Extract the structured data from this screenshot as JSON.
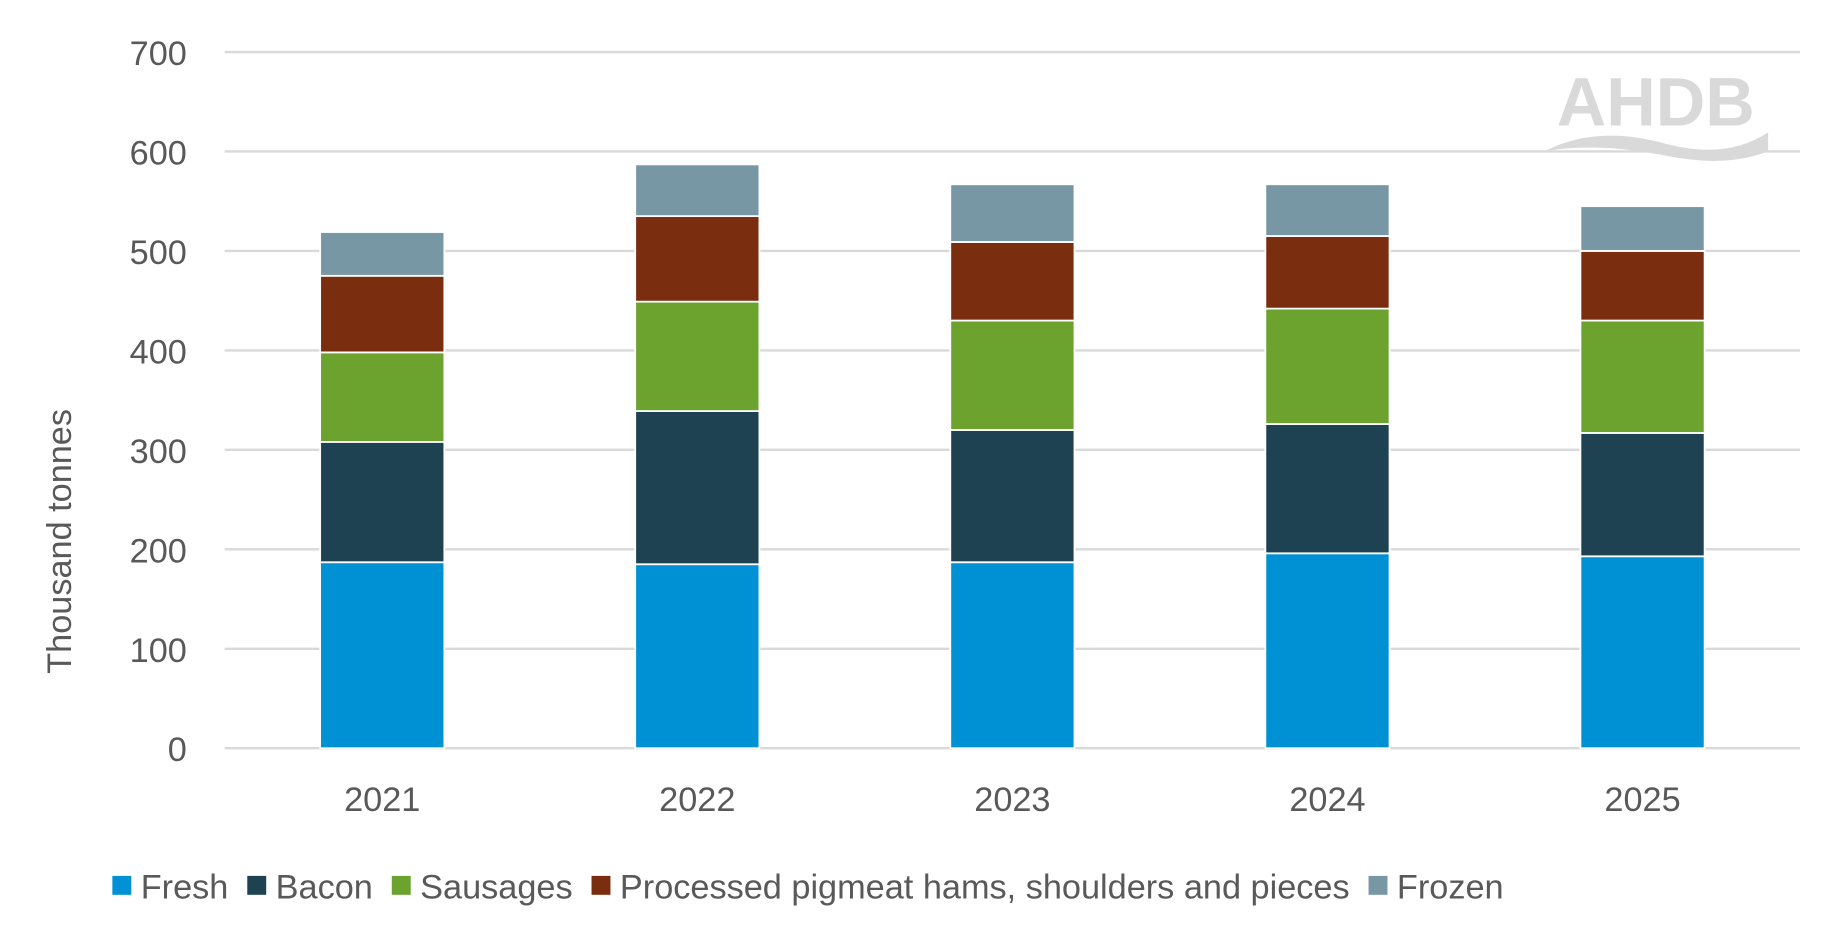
{
  "chart_data": {
    "type": "bar",
    "stacked": true,
    "title": "",
    "xlabel": "",
    "ylabel": "Thousand tonnes",
    "ylim": [
      0,
      700
    ],
    "yticks": [
      0,
      100,
      200,
      300,
      400,
      500,
      600,
      700
    ],
    "grid": true,
    "legend_position": "bottom",
    "categories": [
      "2021",
      "2022",
      "2023",
      "2024",
      "2025"
    ],
    "series": [
      {
        "name": "Fresh",
        "color": "#0090d4",
        "values": [
          187,
          185,
          187,
          196,
          193
        ]
      },
      {
        "name": "Bacon",
        "color": "#1f4252",
        "values": [
          121,
          154,
          133,
          130,
          124
        ]
      },
      {
        "name": "Sausages",
        "color": "#6ca32f",
        "values": [
          90,
          110,
          110,
          116,
          113
        ]
      },
      {
        "name": "Processed pigmeat hams, shoulders and pieces",
        "color": "#7b2d10",
        "values": [
          77,
          86,
          79,
          73,
          70
        ]
      },
      {
        "name": "Frozen",
        "color": "#7897a5",
        "values": [
          44,
          52,
          58,
          52,
          45
        ]
      }
    ]
  },
  "watermark": "AHDB"
}
